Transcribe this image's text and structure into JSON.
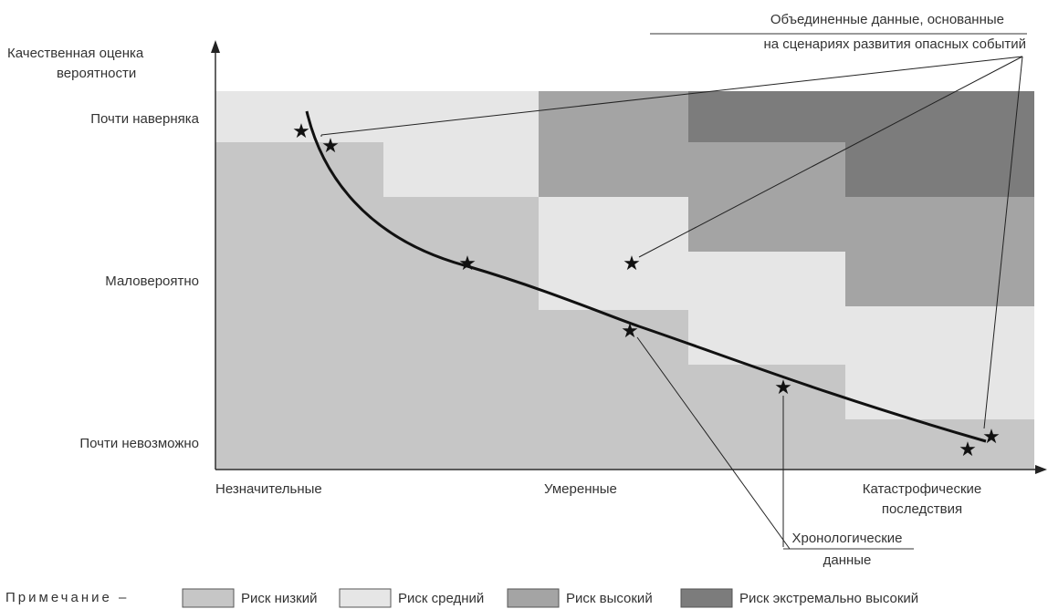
{
  "y_axis": {
    "title_line1": "Качественная оценка",
    "title_line2": "вероятности",
    "levels": [
      "Почти наверняка",
      "Маловероятно",
      "Почти невозможно"
    ]
  },
  "x_axis": {
    "levels": [
      "Незначительные",
      "Умеренные"
    ],
    "last_level_line1": "Катастрофические",
    "last_level_line2": "последствия"
  },
  "callouts": {
    "combined_line1": "Объединенные данные, основанные",
    "combined_line2": "на сценариях развития опасных событий",
    "chrono_line1": "Хронологические",
    "chrono_line2": "данные"
  },
  "legend": {
    "note": "Примечание –",
    "items": [
      {
        "label": "Риск низкий",
        "color": "#c6c6c6"
      },
      {
        "label": "Риск средний",
        "color": "#e6e6e6"
      },
      {
        "label": "Риск высокий",
        "color": "#a4a4a4"
      },
      {
        "label": "Риск экстремально высокий",
        "color": "#7c7c7c"
      }
    ]
  },
  "colors": {
    "low": "#c6c6c6",
    "medium": "#e6e6e6",
    "high": "#a4a4a4",
    "extreme": "#7c7c7c",
    "curve": "#111111"
  },
  "markers": {
    "star_icon": "★"
  }
}
